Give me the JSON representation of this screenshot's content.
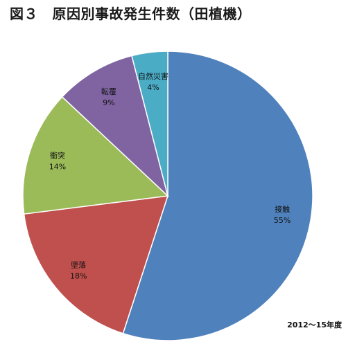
{
  "title": "図３　原因別事故発生件数（田植機）",
  "footnote": "2012〜15年度",
  "chart_data": {
    "type": "pie",
    "title": "図３　原因別事故発生件数（田植機）",
    "start_angle_deg": 0,
    "direction": "clockwise",
    "legend": "none",
    "slices": [
      {
        "label": "接触",
        "value": 55,
        "display": "55%",
        "color": "#4f81bd"
      },
      {
        "label": "墜落",
        "value": 18,
        "display": "18%",
        "color": "#c0504d"
      },
      {
        "label": "衝突",
        "value": 14,
        "display": "14%",
        "color": "#9bbb59"
      },
      {
        "label": "転覆",
        "value": 9,
        "display": "9%",
        "color": "#8064a2"
      },
      {
        "label": "自然災害",
        "value": 4,
        "display": "4%",
        "color": "#4bacc6"
      }
    ]
  }
}
